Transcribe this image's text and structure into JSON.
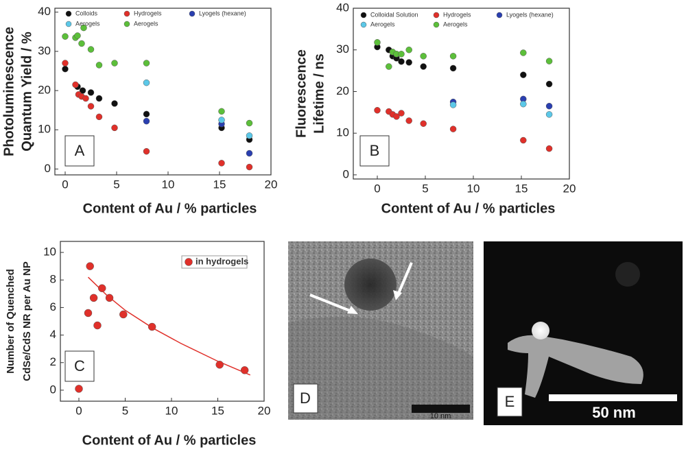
{
  "chart_data": [
    {
      "type": "scatter",
      "panel_label": "A",
      "xlabel": "Content of Au / % particles",
      "ylabel": [
        "Photoluminescence",
        "Quantum Yield / %"
      ],
      "xlim": [
        -1,
        20
      ],
      "ylim": [
        -1.5,
        41
      ],
      "xticks": [
        0,
        5,
        10,
        15,
        20
      ],
      "yticks": [
        0,
        10,
        20,
        30,
        40
      ],
      "series": [
        {
          "name": "Colloids",
          "color": "#111111",
          "x": [
            0,
            1.2,
            1.7,
            2.5,
            3.3,
            4.8,
            7.9,
            15.2,
            17.9
          ],
          "values": [
            25.5,
            21,
            20,
            19.5,
            18,
            16.7,
            14,
            10.5,
            7.5
          ]
        },
        {
          "name": "Hydrogels",
          "color": "#e0302a",
          "x": [
            0,
            1,
            1.3,
            1.6,
            2,
            2.5,
            3.3,
            4.8,
            7.9,
            15.2,
            17.9
          ],
          "values": [
            27,
            21.5,
            19,
            18.5,
            18,
            16,
            13.3,
            10.5,
            4.5,
            1.5,
            0.5
          ]
        },
        {
          "name": "Lyogels (hexane)",
          "color": "#2a3fb0",
          "x": [
            7.9,
            15.2,
            17.9
          ],
          "values": [
            12.2,
            11.5,
            4
          ]
        },
        {
          "name": "Aerogels",
          "color": "#5cc8e8",
          "x": [
            7.9,
            15.2,
            17.9
          ],
          "values": [
            22,
            12.5,
            8.5
          ]
        },
        {
          "name": "Aerogels",
          "color": "#5cbf3a",
          "x": [
            0,
            1,
            1.2,
            1.6,
            1.8,
            2.5,
            3.3,
            4.8,
            7.9,
            15.2,
            17.9
          ],
          "values": [
            33.8,
            33.5,
            34,
            32,
            36,
            30.5,
            26.5,
            27,
            27,
            14.7,
            11.7
          ]
        }
      ]
    },
    {
      "type": "scatter",
      "panel_label": "B",
      "xlabel": "Content of Au / % particles",
      "ylabel": [
        "Fluorescence",
        "Lifetime / ns"
      ],
      "xlim": [
        -2.5,
        20
      ],
      "ylim": [
        -1,
        40
      ],
      "xticks": [
        0,
        5,
        10,
        15,
        20
      ],
      "yticks": [
        0,
        10,
        20,
        30,
        40
      ],
      "series": [
        {
          "name": "Colloidal Solution",
          "color": "#111111",
          "x": [
            0,
            1.2,
            1.6,
            2,
            2.5,
            3.3,
            4.8,
            7.9,
            15.2,
            17.9
          ],
          "values": [
            30.7,
            30,
            28.5,
            28,
            27.2,
            27,
            26,
            25.6,
            24,
            21.8
          ]
        },
        {
          "name": "Hydrogels",
          "color": "#e0302a",
          "x": [
            0,
            1.2,
            1.6,
            2,
            2.5,
            3.3,
            4.8,
            7.9,
            15.2,
            17.9
          ],
          "values": [
            15.5,
            15.2,
            14.5,
            14,
            14.8,
            13,
            12.3,
            11,
            8.3,
            6.3
          ]
        },
        {
          "name": "Lyogels (hexane)",
          "color": "#2a3fb0",
          "x": [
            7.9,
            15.2,
            17.9
          ],
          "values": [
            17.5,
            18.2,
            16.5
          ]
        },
        {
          "name": "Aerogels",
          "color": "#5cc8e8",
          "x": [
            7.9,
            15.2,
            17.9
          ],
          "values": [
            16.8,
            17,
            14.5
          ]
        },
        {
          "name": "Aerogels",
          "color": "#5cbf3a",
          "x": [
            0,
            1.2,
            1.6,
            2,
            2.5,
            3.3,
            4.8,
            7.9,
            15.2,
            17.9
          ],
          "values": [
            31.8,
            26,
            29.5,
            29,
            29,
            30,
            28.5,
            28.5,
            29.3,
            27.3
          ]
        }
      ]
    },
    {
      "type": "scatter",
      "panel_label": "C",
      "xlabel": "Content of Au / % particles",
      "ylabel": [
        "Number of Quenched",
        "CdSe/CdS NR per Au NP"
      ],
      "xlim": [
        -2,
        20
      ],
      "ylim": [
        -0.8,
        10.8
      ],
      "xticks": [
        0,
        5,
        10,
        15,
        20
      ],
      "yticks": [
        0,
        2,
        4,
        6,
        8,
        10
      ],
      "series": [
        {
          "name": "in hydrogels",
          "color": "#e0302a",
          "x": [
            0,
            1,
            1.2,
            1.6,
            2,
            2.5,
            3.3,
            4.8,
            7.9,
            15.2,
            17.9
          ],
          "values": [
            0.1,
            5.6,
            9,
            6.7,
            4.7,
            7.4,
            6.7,
            5.5,
            4.6,
            1.85,
            1.45
          ]
        }
      ],
      "fit": {
        "color": "#e0302a",
        "x": [
          1,
          3,
          5,
          8,
          11,
          15,
          18.5
        ],
        "values": [
          8.2,
          6.9,
          5.8,
          4.5,
          3.4,
          2.1,
          1.1
        ]
      }
    }
  ],
  "images": [
    {
      "panel_label": "D",
      "scale_bar": "10 nm"
    },
    {
      "panel_label": "E",
      "scale_bar": "50 nm"
    }
  ]
}
